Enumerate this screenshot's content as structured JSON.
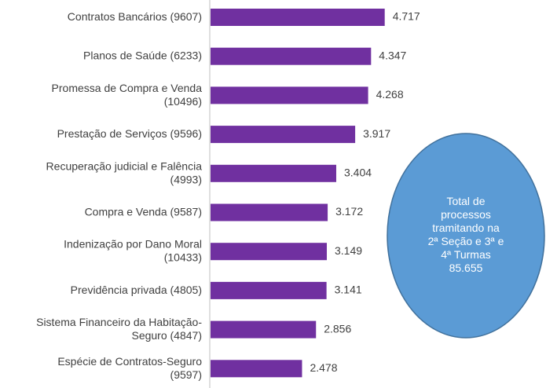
{
  "chart_data": {
    "type": "bar",
    "orientation": "horizontal",
    "categories": [
      "Contratos Bancários (9607)",
      "Planos de Saúde (6233)",
      "Promessa de Compra e Venda (10496)",
      "Prestação de Serviços (9596)",
      "Recuperação judicial e Falência (4993)",
      "Compra e Venda (9587)",
      "Indenização por Dano Moral (10433)",
      "Previdência privada (4805)",
      "Sistema Financeiro da Habitação-Seguro (4847)",
      "Espécie de Contratos-Seguro (9597)"
    ],
    "values": [
      4717,
      4347,
      4268,
      3917,
      3404,
      3172,
      3149,
      3141,
      2856,
      2478
    ],
    "value_labels": [
      "4.717",
      "4.347",
      "4.268",
      "3.917",
      "3.404",
      "3.172",
      "3.149",
      "3.141",
      "2.856",
      "2.478"
    ],
    "color": "#7030a0",
    "annotation": [
      "Total de",
      "processos",
      "tramitando na",
      "2ª Seção e 3ª e",
      "4ª Turmas",
      "85.655"
    ]
  }
}
